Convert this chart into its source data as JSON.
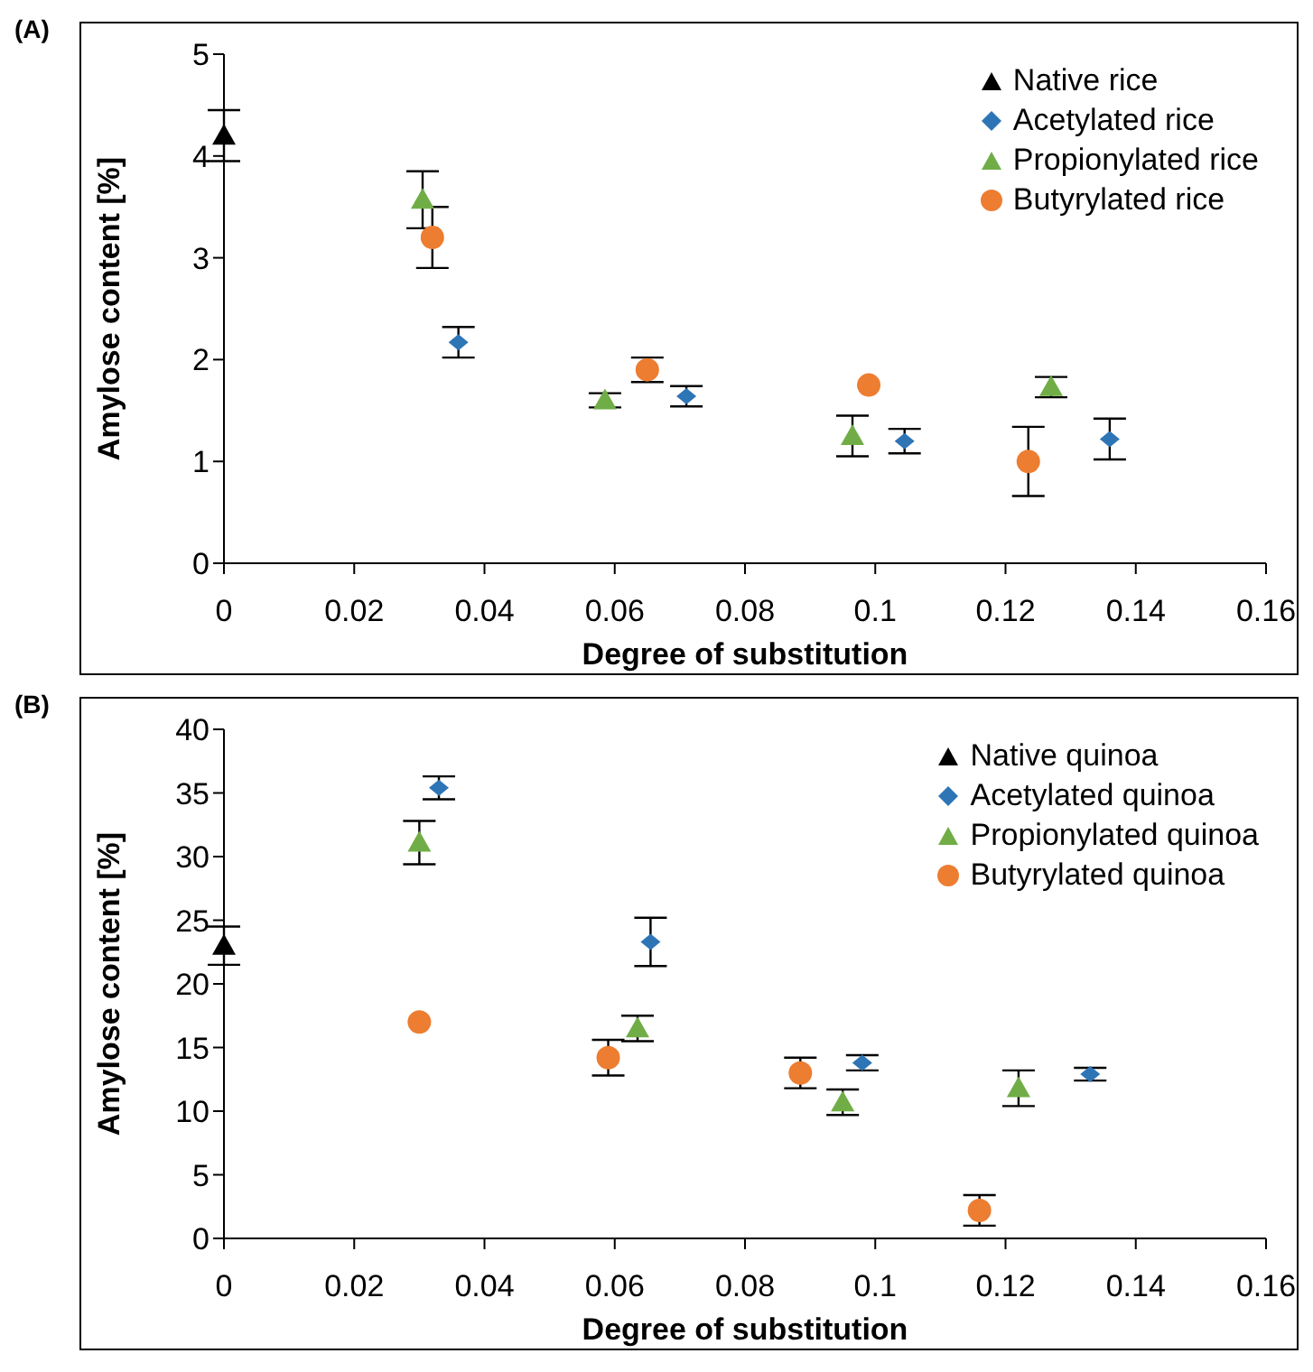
{
  "chart_data": [
    {
      "type": "scatter",
      "title": "(A)",
      "xlabel": "Degree of substitution",
      "ylabel": "Amylose content [%]",
      "xlim": [
        0,
        0.16
      ],
      "xticks": [
        0,
        0.02,
        0.04,
        0.06,
        0.08,
        0.1,
        0.12,
        0.14,
        0.16
      ],
      "ylim": [
        0,
        5
      ],
      "yticks": [
        0,
        1,
        2,
        3,
        4,
        5
      ],
      "grid": false,
      "legend": "top right",
      "series": [
        {
          "name": "Native rice",
          "color": "#000000",
          "marker": "triangle",
          "x": [
            0
          ],
          "values": [
            4.2
          ],
          "errors": [
            0.25
          ]
        },
        {
          "name": "Acetylated rice",
          "color": "#2e75b6",
          "marker": "diamond",
          "x": [
            0.036,
            0.071,
            0.1045,
            0.136
          ],
          "values": [
            2.17,
            1.64,
            1.2,
            1.22
          ],
          "errors": [
            0.15,
            0.1,
            0.12,
            0.2
          ]
        },
        {
          "name": "Propionylated rice",
          "color": "#70ad47",
          "marker": "triangle",
          "x": [
            0.0305,
            0.0585,
            0.0965,
            0.127
          ],
          "values": [
            3.57,
            1.6,
            1.25,
            1.73
          ],
          "errors": [
            0.28,
            0.07,
            0.2,
            0.1
          ]
        },
        {
          "name": "Butyrylated rice",
          "color": "#ed7d31",
          "marker": "circle",
          "x": [
            0.032,
            0.065,
            0.099,
            0.1235
          ],
          "values": [
            3.2,
            1.9,
            1.75,
            1.0
          ],
          "errors": [
            0.3,
            0.12,
            null,
            0.34
          ]
        }
      ]
    },
    {
      "type": "scatter",
      "title": "(B)",
      "xlabel": "Degree of substitution",
      "ylabel": "Amylose content [%]",
      "xlim": [
        0,
        0.16
      ],
      "xticks": [
        0,
        0.02,
        0.04,
        0.06,
        0.08,
        0.1,
        0.12,
        0.14,
        0.16
      ],
      "ylim": [
        0,
        40
      ],
      "yticks": [
        0,
        5,
        10,
        15,
        20,
        25,
        30,
        35,
        40
      ],
      "grid": false,
      "legend": "top right",
      "series": [
        {
          "name": "Native quinoa",
          "color": "#000000",
          "marker": "triangle",
          "x": [
            0
          ],
          "values": [
            23
          ],
          "errors": [
            1.5
          ]
        },
        {
          "name": "Acetylated quinoa",
          "color": "#2e75b6",
          "marker": "diamond",
          "x": [
            0.033,
            0.0655,
            0.098,
            0.133
          ],
          "values": [
            35.4,
            23.3,
            13.8,
            12.9
          ],
          "errors": [
            0.9,
            1.9,
            0.6,
            0.5
          ]
        },
        {
          "name": "Propionylated quinoa",
          "color": "#70ad47",
          "marker": "triangle",
          "x": [
            0.03,
            0.0635,
            0.095,
            0.122
          ],
          "values": [
            31.1,
            16.5,
            10.7,
            11.8
          ],
          "errors": [
            1.7,
            1.0,
            1.0,
            1.4
          ]
        },
        {
          "name": "Butyrylated quinoa",
          "color": "#ed7d31",
          "marker": "circle",
          "x": [
            0.03,
            0.059,
            0.0885,
            0.116
          ],
          "values": [
            17.0,
            14.2,
            13.0,
            2.2
          ],
          "errors": [
            null,
            1.4,
            1.2,
            1.2
          ]
        }
      ]
    }
  ]
}
